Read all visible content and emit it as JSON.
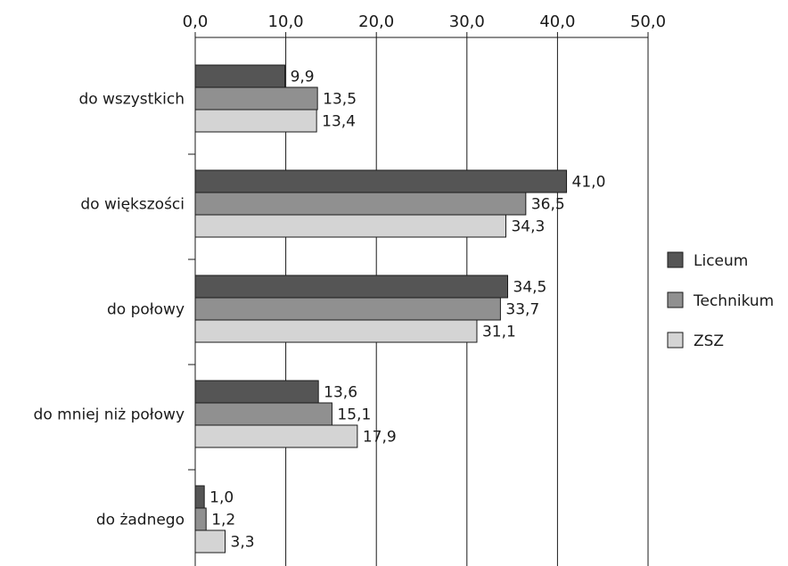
{
  "chart_data": {
    "type": "bar",
    "orientation": "horizontal",
    "categories": [
      "do wszystkich",
      "do większości",
      "do połowy",
      "do mniej niż połowy",
      "do żadnego"
    ],
    "series": [
      {
        "name": "Liceum",
        "color": "#555555",
        "values": [
          9.9,
          41.0,
          34.5,
          13.6,
          1.0
        ],
        "labels": [
          "9,9",
          "41,0",
          "34,5",
          "13,6",
          "1,0"
        ]
      },
      {
        "name": "Technikum",
        "color": "#909090",
        "values": [
          13.5,
          36.5,
          33.7,
          15.1,
          1.2
        ],
        "labels": [
          "13,5",
          "36,5",
          "33,7",
          "15,1",
          "1,2"
        ]
      },
      {
        "name": "ZSZ",
        "color": "#d4d4d4",
        "values": [
          13.4,
          34.3,
          31.1,
          17.9,
          3.3
        ],
        "labels": [
          "13,4",
          "34,3",
          "31,1",
          "17,9",
          "3,3"
        ]
      }
    ],
    "xlim": [
      0,
      50
    ],
    "ticks": [
      0,
      10,
      20,
      30,
      40,
      50
    ],
    "tick_labels": [
      "0,0",
      "10,0",
      "20,0",
      "30,0",
      "40,0",
      "50,0"
    ],
    "x_axis_position": "top",
    "grid": "vertical",
    "legend_position": "right"
  }
}
